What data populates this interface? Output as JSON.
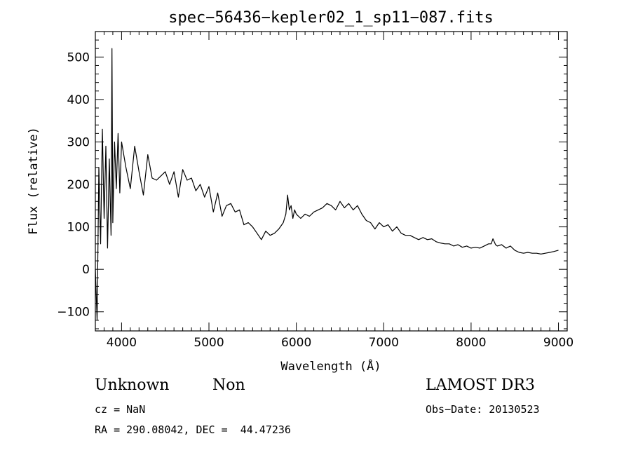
{
  "chart_data": {
    "type": "line",
    "title": "spec−56436−kepler02_1_sp11−087.fits",
    "xlabel": "Wavelength (Å)",
    "ylabel": "Flux (relative)",
    "xlim": [
      3700,
      9100
    ],
    "ylim": [
      -145,
      560
    ],
    "xticks": [
      4000,
      5000,
      6000,
      7000,
      8000,
      9000
    ],
    "xtick_labels": [
      "4000",
      "5000",
      "6000",
      "7000",
      "8000",
      "9000"
    ],
    "yticks": [
      -100,
      0,
      100,
      200,
      300,
      400,
      500
    ],
    "ytick_labels": [
      "−100",
      "0",
      "100",
      "200",
      "300",
      "400",
      "500"
    ],
    "grid": false,
    "line_color": "#000000",
    "x": [
      3700,
      3720,
      3740,
      3760,
      3780,
      3800,
      3820,
      3840,
      3860,
      3880,
      3890,
      3900,
      3920,
      3940,
      3960,
      3980,
      4000,
      4050,
      4100,
      4150,
      4200,
      4250,
      4300,
      4350,
      4400,
      4450,
      4500,
      4550,
      4600,
      4650,
      4700,
      4750,
      4800,
      4850,
      4900,
      4950,
      5000,
      5050,
      5100,
      5150,
      5200,
      5250,
      5300,
      5350,
      5400,
      5450,
      5500,
      5550,
      5600,
      5650,
      5700,
      5750,
      5800,
      5850,
      5880,
      5900,
      5920,
      5940,
      5960,
      5980,
      6000,
      6050,
      6100,
      6150,
      6200,
      6250,
      6300,
      6350,
      6400,
      6450,
      6500,
      6550,
      6600,
      6650,
      6700,
      6750,
      6800,
      6850,
      6900,
      6950,
      7000,
      7050,
      7100,
      7150,
      7200,
      7250,
      7300,
      7350,
      7400,
      7450,
      7500,
      7550,
      7600,
      7650,
      7700,
      7750,
      7800,
      7850,
      7900,
      7950,
      8000,
      8050,
      8100,
      8150,
      8200,
      8230,
      8250,
      8280,
      8300,
      8350,
      8400,
      8450,
      8500,
      8550,
      8600,
      8650,
      8700,
      8750,
      8800,
      8850,
      8900,
      8950,
      9000
    ],
    "y": [
      0,
      -120,
      240,
      60,
      330,
      120,
      290,
      50,
      260,
      80,
      520,
      110,
      300,
      190,
      320,
      180,
      300,
      240,
      190,
      290,
      230,
      175,
      270,
      215,
      210,
      220,
      230,
      200,
      230,
      170,
      235,
      210,
      215,
      185,
      200,
      170,
      195,
      135,
      180,
      125,
      150,
      155,
      135,
      140,
      105,
      110,
      100,
      85,
      70,
      90,
      80,
      85,
      95,
      110,
      130,
      175,
      140,
      150,
      120,
      140,
      130,
      120,
      130,
      125,
      135,
      140,
      145,
      155,
      150,
      140,
      160,
      145,
      155,
      140,
      150,
      130,
      115,
      110,
      95,
      110,
      100,
      105,
      90,
      100,
      85,
      80,
      80,
      75,
      70,
      75,
      70,
      72,
      65,
      62,
      60,
      60,
      55,
      58,
      52,
      55,
      50,
      52,
      50,
      55,
      60,
      60,
      72,
      58,
      55,
      58,
      50,
      55,
      45,
      40,
      38,
      40,
      38,
      38,
      36,
      38,
      40,
      42,
      45
    ]
  },
  "info": {
    "object_class": "Unknown",
    "subclass": "Non",
    "cz": "cz = NaN",
    "coords": "RA = 290.08042, DEC =  44.47236",
    "survey": "LAMOST DR3",
    "obs_date": "Obs−Date: 20130523"
  }
}
